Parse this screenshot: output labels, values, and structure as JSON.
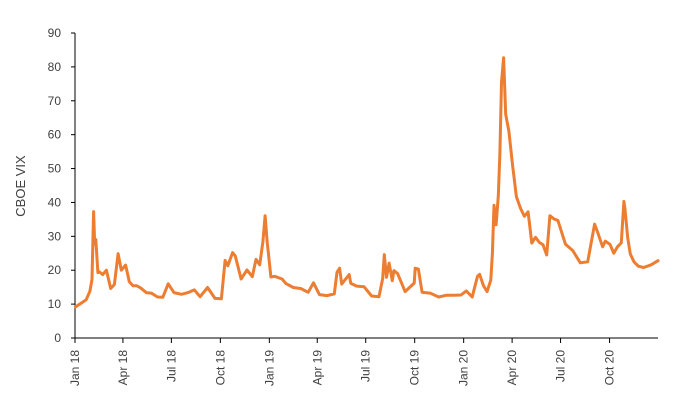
{
  "chart_data": {
    "type": "line",
    "title": "",
    "xlabel": "",
    "ylabel": "CBOE VIX",
    "ylim": [
      0,
      90
    ],
    "yticks": [
      0,
      10,
      20,
      30,
      40,
      50,
      60,
      70,
      80,
      90
    ],
    "xticks": [
      "Jan 18",
      "Apr 18",
      "Jul 18",
      "Oct 18",
      "Jan 19",
      "Apr 19",
      "Jul 19",
      "Oct 19",
      "Jan 20",
      "Apr 20",
      "Jul 20",
      "Oct 20"
    ],
    "grid": false,
    "legend": "none",
    "line_color": "#ED7D31",
    "series": [
      {
        "x": [
          "2018-01-02",
          "2018-01-12",
          "2018-01-22",
          "2018-01-29",
          "2018-02-02",
          "2018-02-05",
          "2018-02-07",
          "2018-02-09",
          "2018-02-13",
          "2018-02-16",
          "2018-02-22",
          "2018-03-01",
          "2018-03-09",
          "2018-03-16",
          "2018-03-23",
          "2018-03-29",
          "2018-04-06",
          "2018-04-13",
          "2018-04-20",
          "2018-04-27",
          "2018-05-04",
          "2018-05-15",
          "2018-05-25",
          "2018-06-05",
          "2018-06-15",
          "2018-06-25",
          "2018-07-06",
          "2018-07-20",
          "2018-08-03",
          "2018-08-13",
          "2018-08-24",
          "2018-09-07",
          "2018-09-21",
          "2018-10-03",
          "2018-10-10",
          "2018-10-15",
          "2018-10-24",
          "2018-10-29",
          "2018-11-09",
          "2018-11-20",
          "2018-11-30",
          "2018-12-07",
          "2018-12-14",
          "2018-12-20",
          "2018-12-24",
          "2018-12-28",
          "2019-01-04",
          "2019-01-11",
          "2019-01-18",
          "2019-01-25",
          "2019-02-01",
          "2019-02-15",
          "2019-03-01",
          "2019-03-15",
          "2019-03-25",
          "2019-04-05",
          "2019-04-19",
          "2019-05-03",
          "2019-05-08",
          "2019-05-13",
          "2019-05-17",
          "2019-05-31",
          "2019-06-03",
          "2019-06-14",
          "2019-06-28",
          "2019-07-12",
          "2019-07-26",
          "2019-08-02",
          "2019-08-05",
          "2019-08-09",
          "2019-08-14",
          "2019-08-20",
          "2019-08-23",
          "2019-08-30",
          "2019-09-13",
          "2019-09-30",
          "2019-10-02",
          "2019-10-08",
          "2019-10-15",
          "2019-10-31",
          "2019-11-15",
          "2019-11-29",
          "2019-12-13",
          "2019-12-27",
          "2020-01-06",
          "2020-01-17",
          "2020-01-27",
          "2020-01-31",
          "2020-02-07",
          "2020-02-14",
          "2020-02-21",
          "2020-02-24",
          "2020-02-27",
          "2020-03-02",
          "2020-03-06",
          "2020-03-09",
          "2020-03-12",
          "2020-03-16",
          "2020-03-20",
          "2020-03-26",
          "2020-04-02",
          "2020-04-09",
          "2020-04-17",
          "2020-04-24",
          "2020-05-01",
          "2020-05-08",
          "2020-05-15",
          "2020-05-22",
          "2020-05-29",
          "2020-06-05",
          "2020-06-11",
          "2020-06-19",
          "2020-06-26",
          "2020-07-10",
          "2020-07-24",
          "2020-08-07",
          "2020-08-21",
          "2020-09-03",
          "2020-09-08",
          "2020-09-18",
          "2020-09-23",
          "2020-10-02",
          "2020-10-09",
          "2020-10-16",
          "2020-10-23",
          "2020-10-28",
          "2020-10-30",
          "2020-11-04",
          "2020-11-09",
          "2020-11-16",
          "2020-11-24",
          "2020-12-04",
          "2020-12-18",
          "2020-12-31"
        ],
        "y": [
          9.2,
          10.2,
          11.3,
          13.8,
          17.3,
          37.3,
          27.7,
          29.1,
          19.3,
          19.5,
          18.7,
          20.0,
          14.6,
          15.8,
          24.9,
          20.0,
          21.5,
          16.6,
          15.4,
          15.4,
          14.8,
          13.4,
          13.2,
          12.1,
          12.0,
          16.0,
          13.4,
          12.9,
          13.5,
          14.2,
          12.2,
          14.9,
          11.7,
          11.6,
          22.9,
          21.3,
          25.2,
          24.2,
          17.4,
          20.1,
          18.1,
          23.2,
          21.6,
          28.4,
          36.1,
          28.3,
          18.0,
          18.2,
          17.8,
          17.4,
          16.1,
          14.9,
          14.6,
          13.5,
          16.3,
          12.8,
          12.5,
          13.0,
          19.4,
          20.6,
          15.9,
          18.7,
          16.1,
          15.3,
          15.1,
          12.4,
          12.2,
          17.6,
          24.6,
          17.9,
          22.1,
          16.9,
          19.9,
          19.0,
          13.7,
          16.2,
          20.6,
          20.3,
          13.5,
          13.2,
          12.1,
          12.6,
          12.6,
          12.7,
          13.9,
          12.1,
          18.2,
          18.8,
          15.5,
          13.7,
          17.1,
          25.0,
          39.2,
          33.4,
          41.9,
          54.5,
          75.5,
          82.7,
          66.0,
          61.0,
          50.9,
          41.7,
          38.2,
          35.9,
          37.2,
          28.0,
          29.7,
          28.2,
          27.5,
          24.5,
          36.1,
          35.1,
          34.7,
          27.7,
          25.8,
          22.2,
          22.5,
          33.6,
          31.5,
          26.9,
          28.6,
          27.6,
          25.0,
          26.9,
          28.1,
          40.3,
          38.0,
          29.6,
          24.8,
          22.5,
          21.2,
          20.8,
          21.6,
          22.8
        ]
      }
    ]
  }
}
